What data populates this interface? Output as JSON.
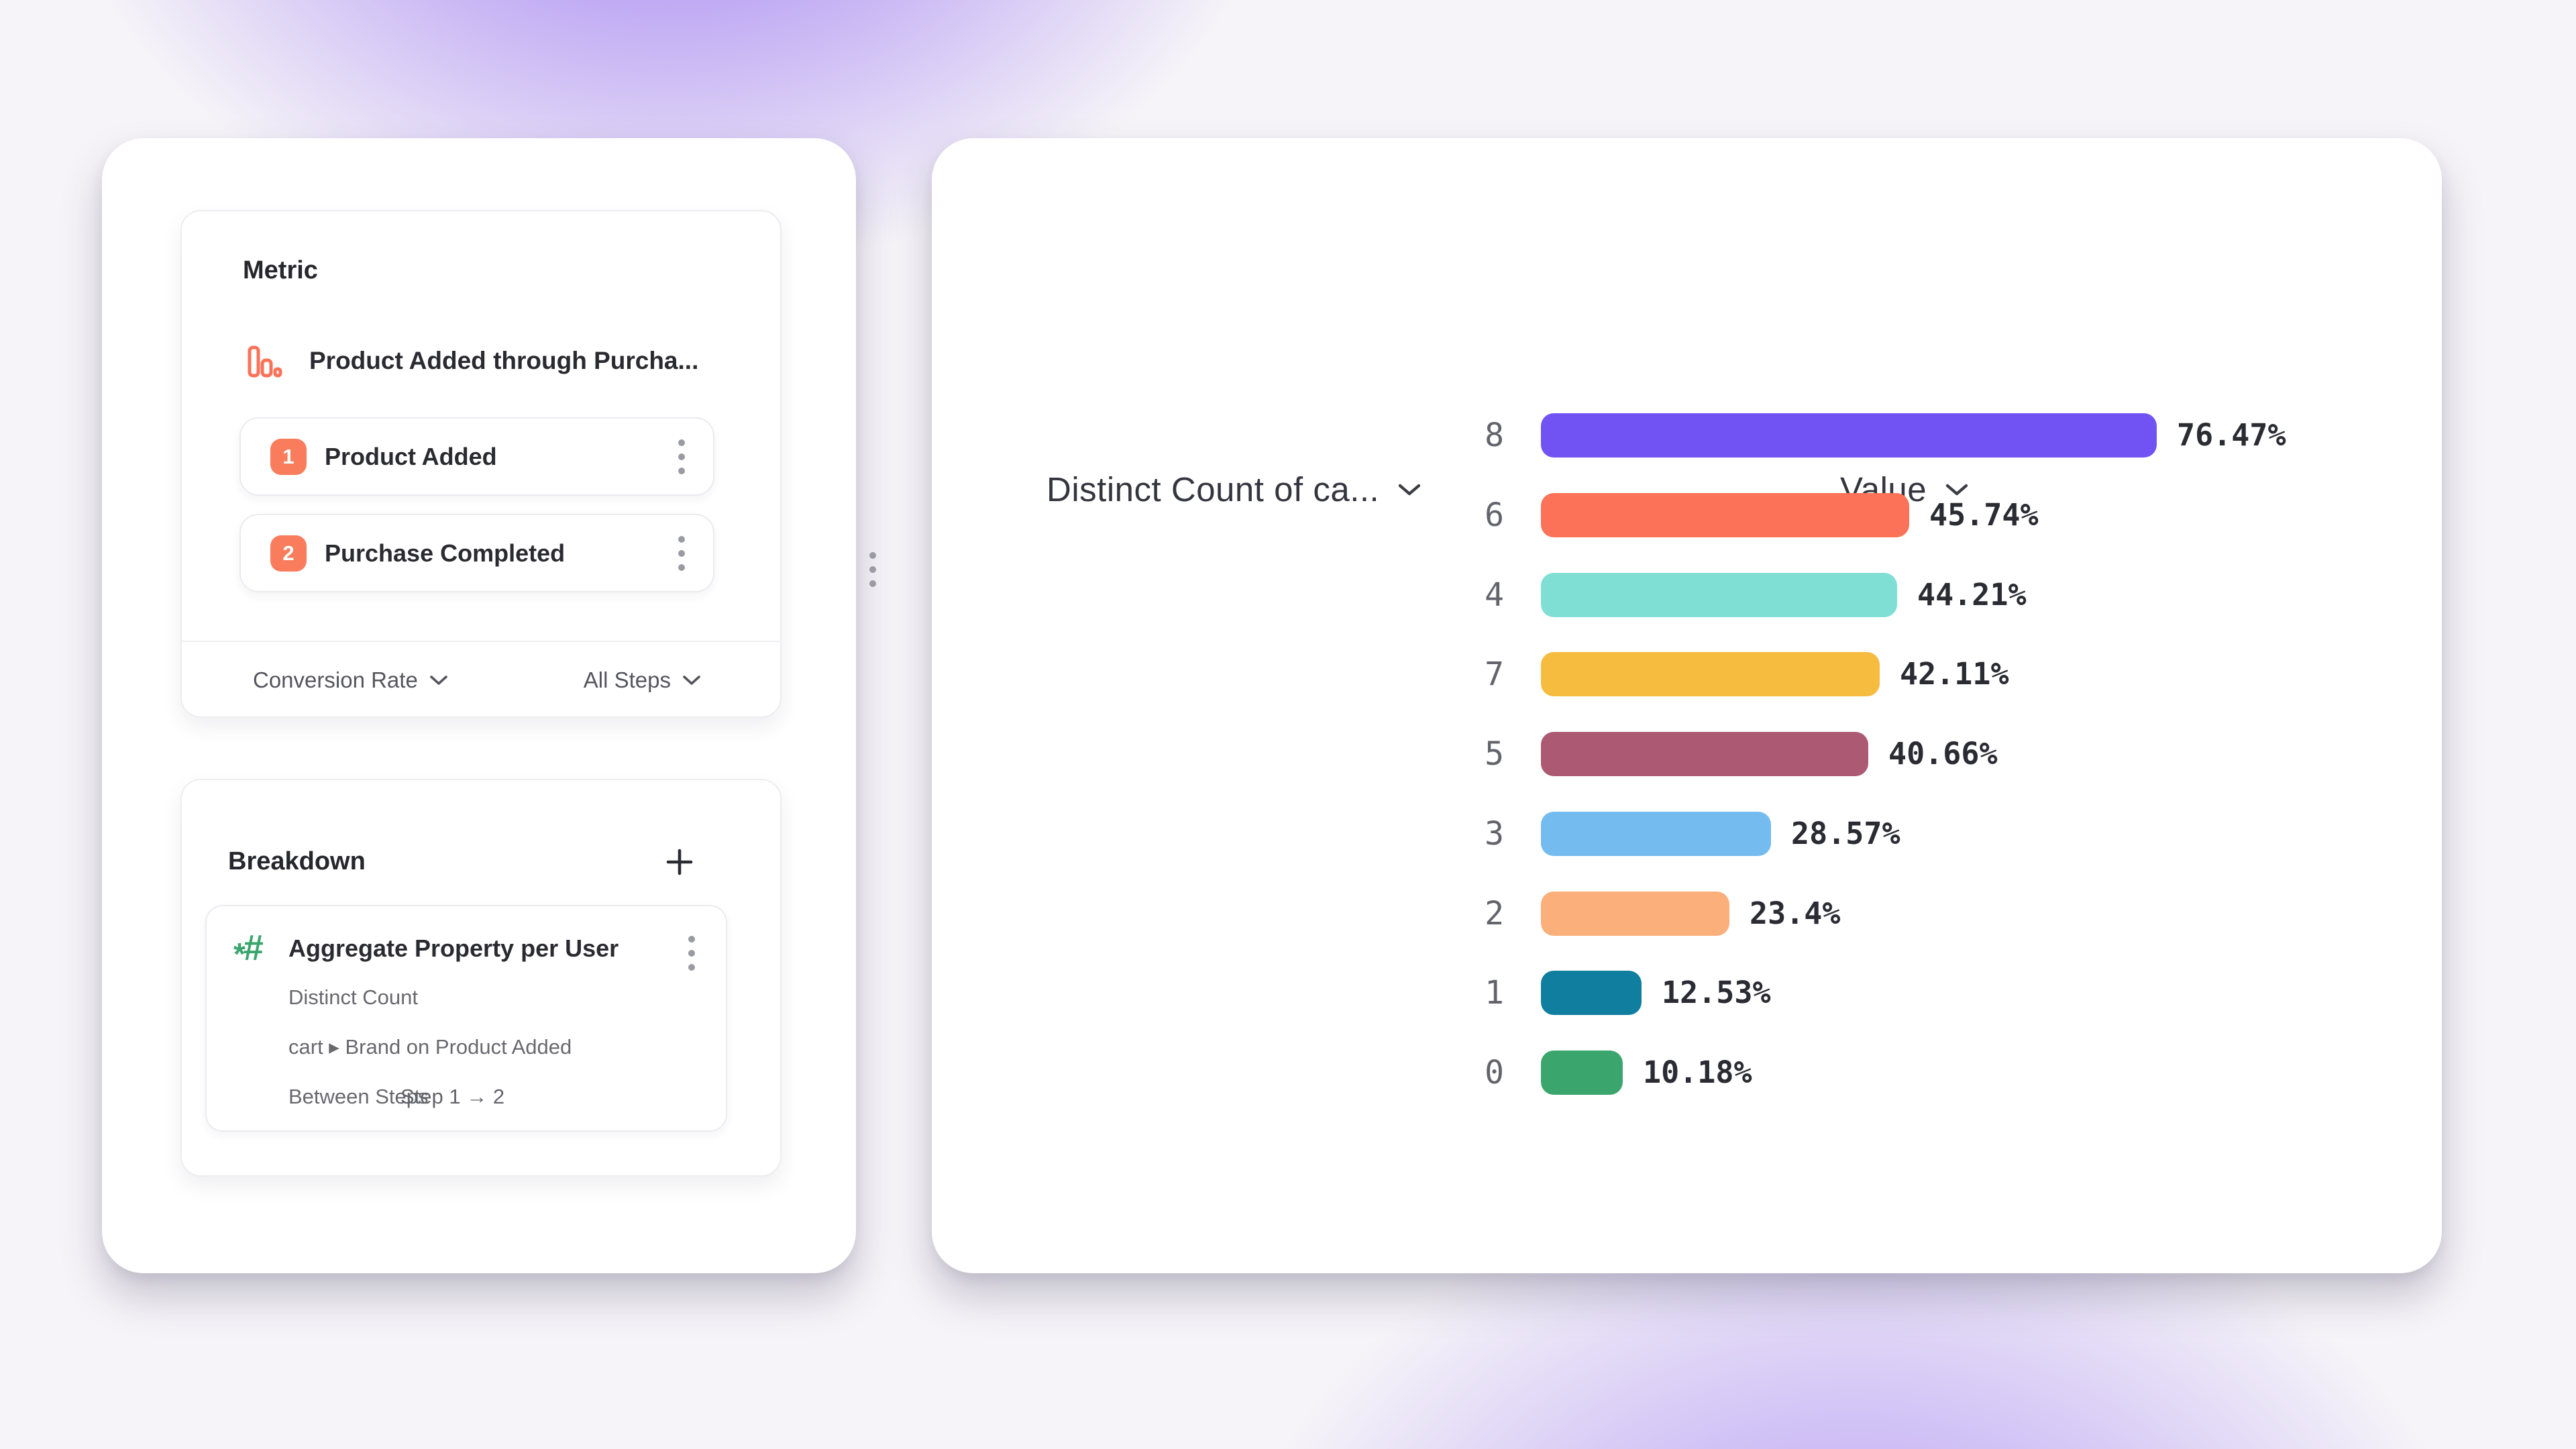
{
  "page": {
    "background_base": "#f6f4f8",
    "glow_top_color": "#9671f0",
    "glow_bottom_color": "#a080f2"
  },
  "metric_card": {
    "title": "Metric",
    "funnel_metric": {
      "icon": "funnel-bars-icon",
      "icon_color": "#FB7258",
      "label": "Product Added through Purcha...",
      "menu_icon": "kebab-menu-icon"
    },
    "step_badge_color": "#F97C5C",
    "steps": [
      {
        "number": "1",
        "label": "Product Added",
        "menu_icon": "kebab-menu-icon"
      },
      {
        "number": "2",
        "label": "Purchase Completed",
        "menu_icon": "kebab-menu-icon"
      }
    ],
    "footer": {
      "left_label": "Conversion Rate",
      "left_icon": "chevron-down-icon",
      "right_label": "All Steps",
      "right_icon": "chevron-down-icon"
    }
  },
  "breakdown_card": {
    "title": "Breakdown",
    "add_icon": "plus-icon",
    "property": {
      "icon": "hashtag-sparkle-icon",
      "icon_color": "#3BA56E",
      "title": "Aggregate Property per User",
      "menu_icon": "kebab-menu-icon",
      "aggregation": "Distinct Count",
      "property_path": "cart ▸ Brand on Product Added",
      "scope_label": "Between Steps",
      "scope_value": "Step 1 → 2"
    }
  },
  "chart_data": {
    "type": "bar",
    "orientation": "horizontal",
    "column_headers": [
      {
        "label": "Distinct Count of ca...",
        "icon": "chevron-down-icon"
      },
      {
        "label": "Value",
        "icon": "chevron-down-icon"
      }
    ],
    "categories": [
      "8",
      "6",
      "4",
      "7",
      "5",
      "3",
      "2",
      "1",
      "0"
    ],
    "values": [
      76.47,
      45.74,
      44.21,
      42.11,
      40.66,
      28.57,
      23.4,
      12.53,
      10.18
    ],
    "value_labels": [
      "76.47%",
      "45.74%",
      "44.21%",
      "42.11%",
      "40.66%",
      "28.57%",
      "23.4%",
      "12.53%",
      "10.18%"
    ],
    "bar_colors": [
      "#7152F3",
      "#FB7258",
      "#7FDFD4",
      "#F6BC3F",
      "#AC5A73",
      "#74BBF0",
      "#FBAF7B",
      "#107E9F",
      "#3BA56E"
    ],
    "xlim": [
      0,
      100
    ],
    "grid": false,
    "legend_position": "none"
  }
}
